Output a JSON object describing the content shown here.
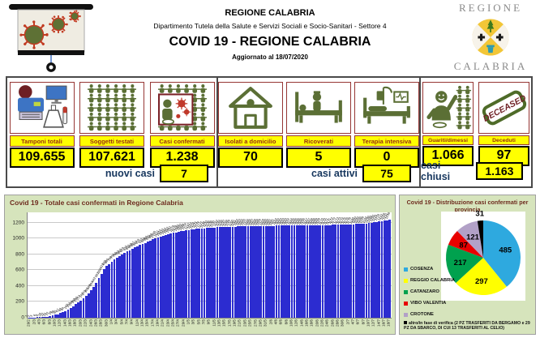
{
  "header": {
    "org_line": "REGIONE CALABRIA",
    "dept_line": "Dipartimento Tutela della Salute e Servizi Sociali e Socio-Sanitari - Settore 4",
    "main_title": "COVID 19 - REGIONE CALABRIA",
    "updated_line": "Aggiornato al  18/07/2020",
    "logo": {
      "top": "REGIONE",
      "bottom": "CALABRIA"
    }
  },
  "stats": {
    "deceased_stamp_text": "DECEASED",
    "groups": [
      {
        "cards": [
          {
            "label": "Tamponi totali",
            "value": "109.655",
            "icon": "lab-tests-icon"
          },
          {
            "label": "Soggetti testati",
            "value": "107.621",
            "icon": "people-grid-icon"
          },
          {
            "label": "Casi confermati",
            "value": "1.238",
            "icon": "infected-person-icon"
          }
        ],
        "summary": {
          "label": "nuovi casi",
          "value": "7"
        }
      },
      {
        "cards": [
          {
            "label": "Isolati a domicilio",
            "value": "70",
            "icon": "house-icon"
          },
          {
            "label": "Ricoverati",
            "value": "5",
            "icon": "hospital-bed-icon"
          },
          {
            "label": "Terapia intensiva",
            "value": "0",
            "icon": "icu-bed-icon"
          }
        ],
        "summary": {
          "label": "casi attivi",
          "value": "75"
        }
      },
      {
        "cards": [
          {
            "label": "Guariti/dimessi",
            "value": "1.066",
            "icon": "recovered-person-icon"
          },
          {
            "label": "Deceduti",
            "value": "97",
            "icon": "deceased-stamp-icon"
          }
        ],
        "summary": {
          "label": "casi chiusi",
          "value": "1.163"
        }
      }
    ]
  },
  "theme": {
    "accent_yellow": "#FFFF00",
    "card_label_color": "#9A2B12",
    "summary_label_color": "#17375E",
    "panel_bg": "#D6E4BC",
    "chart_title_color": "#6E2C1F",
    "card_border": "#963634"
  },
  "chart_data": [
    {
      "type": "bar",
      "title": "Covid 19 - Totale casi confermati in Regione Calabria",
      "xlabel": "",
      "ylabel": "",
      "ylim": [
        0,
        1330
      ],
      "yticks": [
        0,
        200,
        400,
        600,
        800,
        1000,
        1200
      ],
      "x_tick_every": 2,
      "grid": true,
      "data_labels": true,
      "bar_color": "#2C2CD0",
      "x": [
        "29/2",
        "1/3",
        "2/3",
        "3/3",
        "4/3",
        "5/3",
        "6/3",
        "7/3",
        "8/3",
        "9/3",
        "10/3",
        "11/3",
        "12/3",
        "13/3",
        "14/3",
        "15/3",
        "16/3",
        "17/3",
        "18/3",
        "19/3",
        "20/3",
        "21/3",
        "22/3",
        "23/3",
        "24/3",
        "25/3",
        "26/3",
        "27/3",
        "28/3",
        "29/3",
        "30/3",
        "31/3",
        "1/4",
        "2/4",
        "3/4",
        "4/4",
        "5/4",
        "6/4",
        "7/4",
        "8/4",
        "9/4",
        "10/4",
        "11/4",
        "12/4",
        "13/4",
        "14/4",
        "15/4",
        "16/4",
        "17/4",
        "18/4",
        "19/4",
        "20/4",
        "21/4",
        "22/4",
        "23/4",
        "24/4",
        "25/4",
        "26/4",
        "27/4",
        "28/4",
        "29/4",
        "30/4",
        "1/5",
        "2/5",
        "3/5",
        "4/5",
        "5/5",
        "6/5",
        "7/5",
        "8/5",
        "9/5",
        "10/5",
        "11/5",
        "12/5",
        "13/5",
        "14/5",
        "15/5",
        "16/5",
        "17/5",
        "18/5",
        "19/5",
        "20/5",
        "21/5",
        "22/5",
        "23/5",
        "24/5",
        "25/5",
        "26/5",
        "27/5",
        "28/5",
        "29/5",
        "30/5",
        "31/5",
        "1/6",
        "2/6",
        "3/6",
        "4/6",
        "5/6",
        "6/6",
        "7/6",
        "8/6",
        "9/6",
        "10/6",
        "11/6",
        "12/6",
        "13/6",
        "14/6",
        "15/6",
        "16/6",
        "17/6",
        "18/6",
        "19/6",
        "20/6",
        "21/6",
        "22/6",
        "23/6",
        "24/6",
        "25/6",
        "26/6",
        "27/6",
        "28/6",
        "29/6",
        "30/6",
        "1/7",
        "2/7",
        "3/7",
        "4/7",
        "5/7",
        "6/7",
        "7/7",
        "8/7",
        "9/7",
        "10/7",
        "11/7",
        "12/7",
        "13/7",
        "14/7",
        "15/7",
        "16/7",
        "17/7",
        "18/7"
      ],
      "values": [
        1,
        2,
        3,
        6,
        8,
        10,
        12,
        15,
        22,
        28,
        36,
        45,
        57,
        69,
        84,
        102,
        124,
        148,
        169,
        190,
        214,
        243,
        273,
        305,
        349,
        394,
        442,
        501,
        556,
        612,
        650,
        680,
        708,
        734,
        760,
        782,
        803,
        819,
        835,
        852,
        869,
        887,
        903,
        918,
        932,
        946,
        960,
        975,
        988,
        1000,
        1011,
        1022,
        1032,
        1042,
        1052,
        1061,
        1070,
        1078,
        1085,
        1092,
        1098,
        1104,
        1110,
        1114,
        1118,
        1121,
        1124,
        1127,
        1130,
        1133,
        1136,
        1138,
        1140,
        1142,
        1144,
        1146,
        1147,
        1148,
        1149,
        1150,
        1151,
        1152,
        1153,
        1154,
        1155,
        1156,
        1156,
        1157,
        1158,
        1158,
        1159,
        1159,
        1160,
        1160,
        1161,
        1161,
        1162,
        1162,
        1163,
        1163,
        1163,
        1164,
        1164,
        1165,
        1165,
        1166,
        1166,
        1166,
        1167,
        1167,
        1168,
        1168,
        1169,
        1169,
        1170,
        1170,
        1171,
        1171,
        1172,
        1172,
        1173,
        1173,
        1174,
        1175,
        1176,
        1178,
        1180,
        1182,
        1184,
        1186,
        1189,
        1192,
        1196,
        1200,
        1205,
        1210,
        1216,
        1222,
        1228,
        1231,
        1238
      ]
    },
    {
      "type": "pie",
      "title": "Covid 19 - Distribuzione casi confermati per provincia",
      "labels": [
        "COSENZA",
        "REGGIO CALABRIA",
        "CATANZARO",
        "VIBO VALENTIA",
        "CROTONE",
        "altro/in fase di verifica (2 PZ TRASFERITI DA BERGAMO e 29 PZ DA SBARCO, DI CUI 13 TRASFERITI AL CELIO)"
      ],
      "values": [
        485,
        297,
        217,
        87,
        121,
        31
      ],
      "colors": [
        "#2EA9DF",
        "#FFFF00",
        "#00A14E",
        "#E80000",
        "#B2A1C7",
        "#000000"
      ],
      "legend_position": "left",
      "start_angle": "top-clockwise"
    }
  ]
}
